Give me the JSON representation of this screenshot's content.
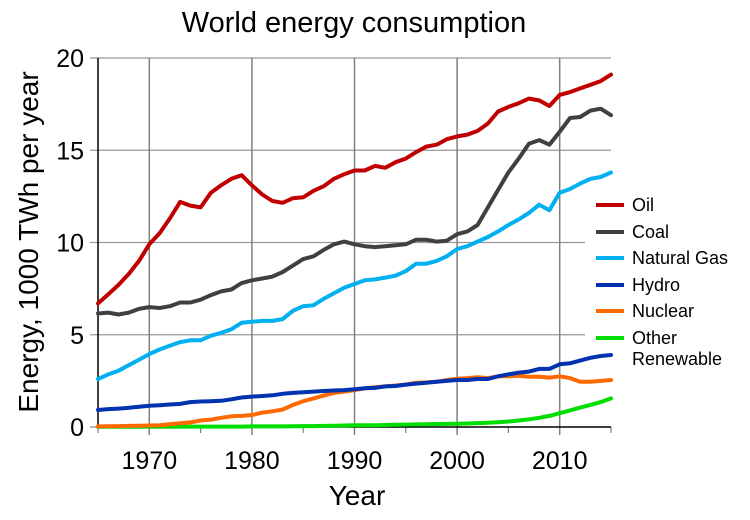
{
  "chart_data": {
    "type": "line",
    "title": "World energy consumption",
    "xlabel": "Year",
    "ylabel": "Energy, 1000 TWh per year",
    "xlim": [
      1965,
      2015
    ],
    "ylim": [
      0,
      20
    ],
    "x_ticks": [
      1970,
      1980,
      1990,
      2000,
      2010
    ],
    "x_tick_labels": [
      "1970",
      "1980",
      "1990",
      "2000",
      "2010"
    ],
    "x_minor_ticks": [
      1965,
      1975,
      1985,
      1995,
      2005,
      2015
    ],
    "y_ticks": [
      0,
      5,
      10,
      15,
      20
    ],
    "y_tick_labels": [
      "0",
      "5",
      "10",
      "15",
      "20"
    ],
    "grid": true,
    "legend_position": "right",
    "x": [
      1965,
      1966,
      1967,
      1968,
      1969,
      1970,
      1971,
      1972,
      1973,
      1974,
      1975,
      1976,
      1977,
      1978,
      1979,
      1980,
      1981,
      1982,
      1983,
      1984,
      1985,
      1986,
      1987,
      1988,
      1989,
      1990,
      1991,
      1992,
      1993,
      1994,
      1995,
      1996,
      1997,
      1998,
      1999,
      2000,
      2001,
      2002,
      2003,
      2004,
      2005,
      2006,
      2007,
      2008,
      2009,
      2010,
      2011,
      2012,
      2013,
      2014,
      2015
    ],
    "series": [
      {
        "name": "Oil",
        "color": "#c00000",
        "values": [
          6.7,
          7.2,
          7.7,
          8.3,
          9.0,
          9.9,
          10.5,
          11.3,
          12.2,
          12.0,
          11.9,
          12.7,
          13.1,
          13.45,
          13.65,
          13.1,
          12.6,
          12.25,
          12.15,
          12.4,
          12.45,
          12.8,
          13.05,
          13.45,
          13.7,
          13.9,
          13.9,
          14.15,
          14.05,
          14.35,
          14.55,
          14.9,
          15.2,
          15.3,
          15.6,
          15.75,
          15.85,
          16.05,
          16.45,
          17.1,
          17.35,
          17.55,
          17.8,
          17.7,
          17.4,
          18.0,
          18.15,
          18.35,
          18.55,
          18.75,
          19.1
        ]
      },
      {
        "name": "Coal",
        "color": "#404040",
        "values": [
          6.15,
          6.2,
          6.1,
          6.2,
          6.4,
          6.5,
          6.45,
          6.55,
          6.75,
          6.75,
          6.9,
          7.15,
          7.35,
          7.45,
          7.8,
          7.95,
          8.05,
          8.15,
          8.4,
          8.75,
          9.1,
          9.25,
          9.6,
          9.9,
          10.05,
          9.9,
          9.8,
          9.75,
          9.8,
          9.85,
          9.9,
          10.15,
          10.15,
          10.05,
          10.1,
          10.45,
          10.6,
          10.95,
          11.9,
          12.85,
          13.8,
          14.55,
          15.35,
          15.55,
          15.3,
          16.0,
          16.75,
          16.8,
          17.15,
          17.25,
          16.9
        ]
      },
      {
        "name": "Natural Gas",
        "color": "#00b0f0",
        "values": [
          2.6,
          2.85,
          3.05,
          3.35,
          3.65,
          3.95,
          4.2,
          4.4,
          4.6,
          4.7,
          4.7,
          4.95,
          5.1,
          5.3,
          5.65,
          5.7,
          5.75,
          5.75,
          5.85,
          6.3,
          6.55,
          6.6,
          6.95,
          7.25,
          7.55,
          7.75,
          7.95,
          8.0,
          8.1,
          8.2,
          8.45,
          8.85,
          8.85,
          9.0,
          9.25,
          9.65,
          9.8,
          10.05,
          10.3,
          10.6,
          10.95,
          11.25,
          11.6,
          12.05,
          11.75,
          12.7,
          12.9,
          13.2,
          13.45,
          13.55,
          13.8
        ]
      },
      {
        "name": "Hydro",
        "color": "#0033b0",
        "values": [
          0.92,
          0.97,
          1.0,
          1.04,
          1.1,
          1.15,
          1.18,
          1.22,
          1.25,
          1.35,
          1.38,
          1.4,
          1.42,
          1.5,
          1.6,
          1.65,
          1.68,
          1.72,
          1.8,
          1.85,
          1.88,
          1.92,
          1.95,
          1.98,
          2.0,
          2.05,
          2.1,
          2.12,
          2.2,
          2.22,
          2.3,
          2.35,
          2.4,
          2.45,
          2.5,
          2.55,
          2.55,
          2.6,
          2.6,
          2.75,
          2.85,
          2.95,
          3.0,
          3.15,
          3.15,
          3.4,
          3.45,
          3.6,
          3.75,
          3.85,
          3.9
        ]
      },
      {
        "name": "Nuclear",
        "color": "#ff6a00",
        "values": [
          0.03,
          0.04,
          0.05,
          0.06,
          0.07,
          0.08,
          0.1,
          0.15,
          0.2,
          0.25,
          0.35,
          0.4,
          0.5,
          0.58,
          0.6,
          0.65,
          0.78,
          0.85,
          0.95,
          1.2,
          1.4,
          1.55,
          1.7,
          1.85,
          1.92,
          2.0,
          2.1,
          2.15,
          2.2,
          2.25,
          2.3,
          2.4,
          2.42,
          2.45,
          2.55,
          2.62,
          2.65,
          2.7,
          2.65,
          2.75,
          2.75,
          2.78,
          2.72,
          2.72,
          2.68,
          2.75,
          2.65,
          2.45,
          2.45,
          2.5,
          2.55
        ]
      },
      {
        "name": "Other Renewable",
        "legend_lines": [
          "Other",
          "Renewable"
        ],
        "color": "#00dd00",
        "values": [
          0.01,
          0.01,
          0.01,
          0.01,
          0.01,
          0.01,
          0.01,
          0.01,
          0.02,
          0.02,
          0.02,
          0.02,
          0.02,
          0.02,
          0.02,
          0.03,
          0.03,
          0.03,
          0.03,
          0.04,
          0.05,
          0.05,
          0.06,
          0.07,
          0.08,
          0.09,
          0.1,
          0.1,
          0.11,
          0.12,
          0.13,
          0.14,
          0.15,
          0.16,
          0.17,
          0.18,
          0.19,
          0.21,
          0.23,
          0.26,
          0.3,
          0.35,
          0.42,
          0.5,
          0.6,
          0.75,
          0.9,
          1.05,
          1.2,
          1.35,
          1.55
        ]
      }
    ]
  }
}
